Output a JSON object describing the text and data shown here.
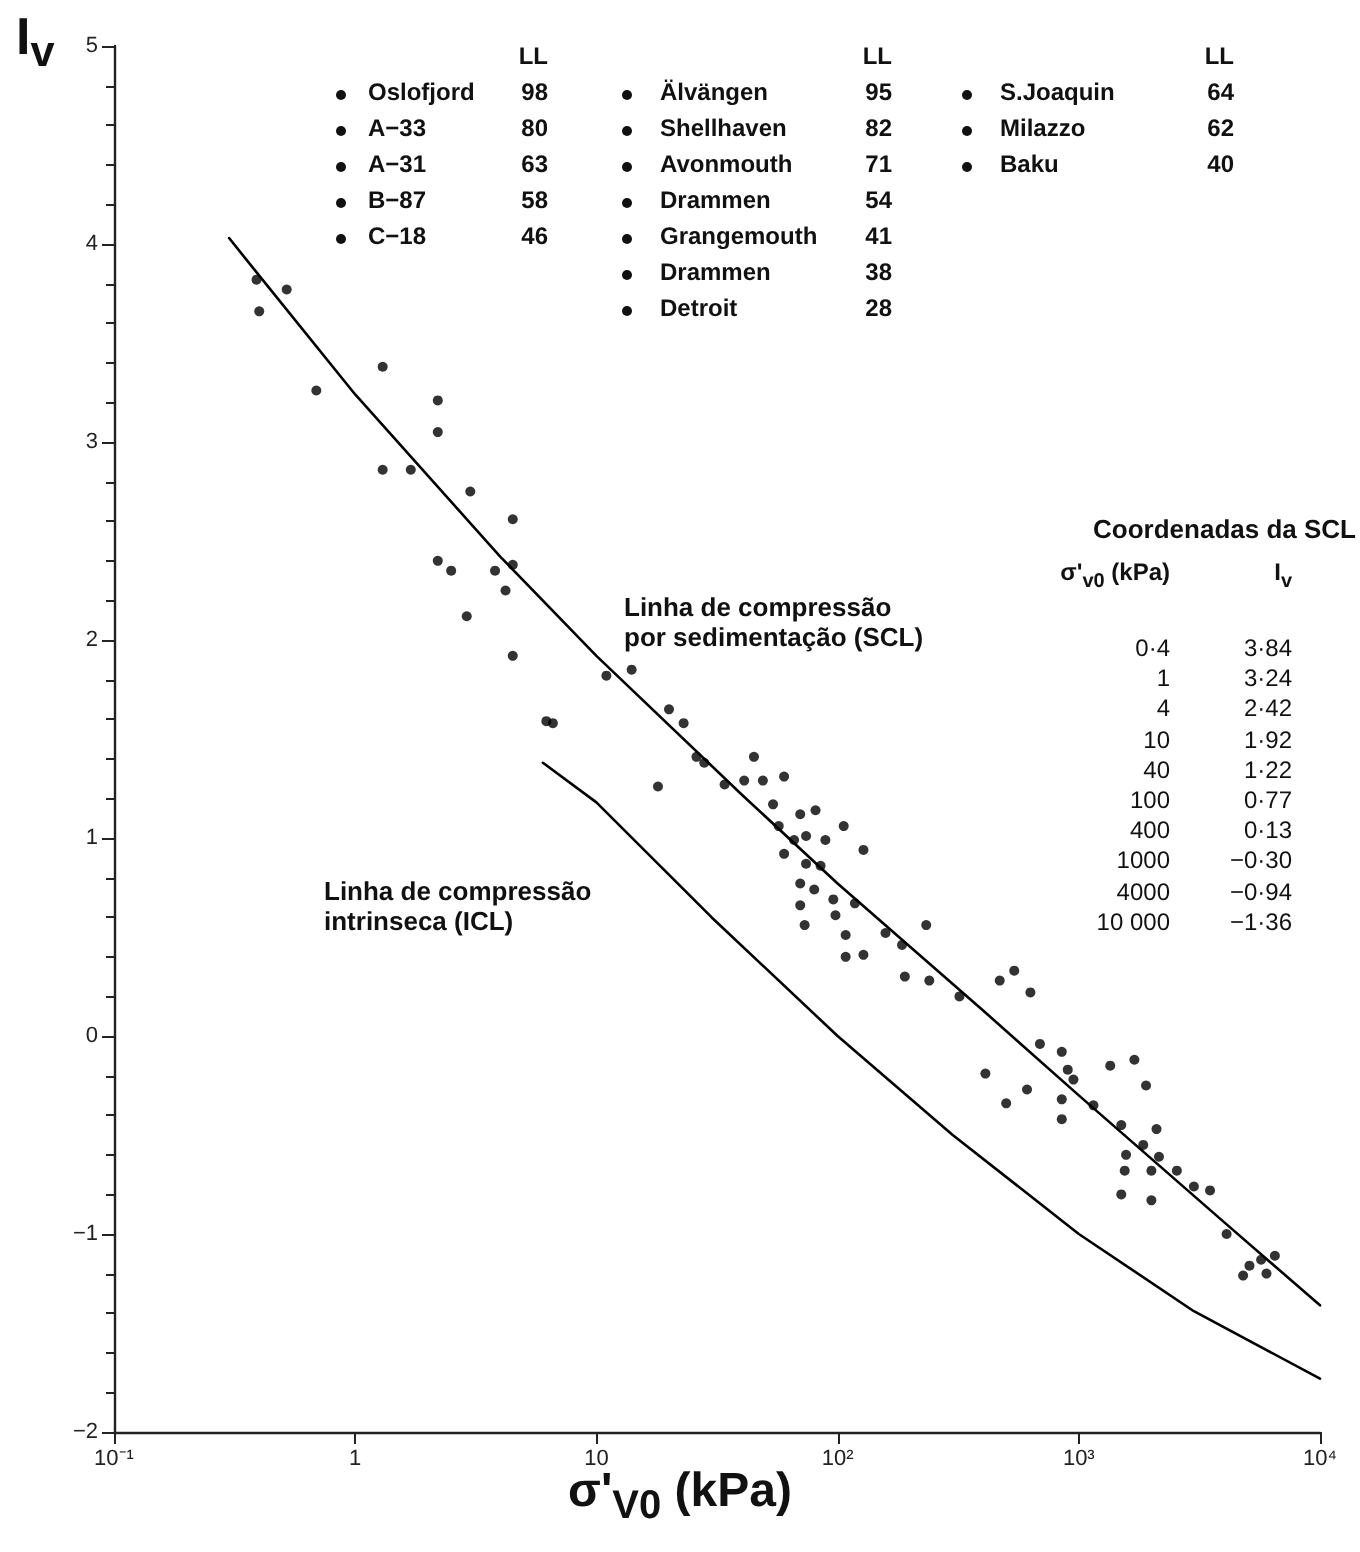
{
  "chart_data": {
    "type": "scatter",
    "xlabel": "σ'$_{V0}$ (kPa)",
    "ylabel": "I$_{v}$",
    "log": "x",
    "marker": "circle",
    "xlim": [
      0.1,
      10000
    ],
    "xticks": [
      {
        "value": 0.1,
        "label": "10⁻¹"
      },
      1,
      10,
      {
        "value": 100,
        "label": "10²"
      },
      {
        "value": 1000,
        "label": "10³"
      },
      {
        "value": 10000,
        "label": "10⁴"
      }
    ],
    "ylim": [
      -2,
      5
    ],
    "yticks": [
      {
        "value": -2,
        "label": "−2"
      },
      {
        "value": -1,
        "label": "−1"
      },
      0,
      1,
      2,
      3,
      4,
      5
    ],
    "series": [
      {
        "color": "#000000",
        "x": [
          0.39,
          0.4,
          0.52,
          0.69,
          1.3,
          1.3,
          1.7,
          2.2,
          2.2,
          3.0,
          2.2,
          2.5,
          2.9,
          4.5,
          4.5,
          3.8,
          4.2,
          4.5,
          6.2,
          6.6,
          11,
          14,
          20,
          18,
          23,
          26,
          28,
          45,
          34,
          41,
          49,
          60,
          54,
          70,
          81,
          57,
          66,
          74,
          89,
          106,
          128,
          60,
          74,
          85,
          70,
          80,
          96,
          118,
          70,
          73,
          98,
          108,
          158,
          185,
          233,
          108,
          128,
          190,
          240,
          320,
          470,
          540,
          630,
          690,
          410,
          500,
          610,
          850,
          950,
          850,
          1150,
          1350,
          1700,
          1900,
          1500,
          2100,
          1850,
          1570,
          2150,
          2000,
          1550,
          1500,
          2000,
          2550,
          3000,
          3500,
          4100,
          4800,
          5700,
          6500,
          6000,
          5100,
          850,
          900
        ],
        "values": [
          3.82,
          3.66,
          3.77,
          3.26,
          3.38,
          2.86,
          2.86,
          3.21,
          3.05,
          2.75,
          2.4,
          2.35,
          2.12,
          2.61,
          2.38,
          2.35,
          2.25,
          1.92,
          1.59,
          1.58,
          1.82,
          1.85,
          1.65,
          1.26,
          1.58,
          1.41,
          1.38,
          1.41,
          1.27,
          1.29,
          1.29,
          1.31,
          1.17,
          1.12,
          1.14,
          1.06,
          0.99,
          1.01,
          0.99,
          1.06,
          0.94,
          0.92,
          0.87,
          0.86,
          0.77,
          0.74,
          0.69,
          0.67,
          0.66,
          0.56,
          0.61,
          0.51,
          0.52,
          0.46,
          0.56,
          0.4,
          0.41,
          0.3,
          0.28,
          0.2,
          0.28,
          0.33,
          0.22,
          -0.04,
          -0.19,
          -0.34,
          -0.27,
          -0.32,
          -0.22,
          -0.42,
          -0.35,
          -0.15,
          -0.12,
          -0.25,
          -0.45,
          -0.47,
          -0.55,
          -0.6,
          -0.61,
          -0.68,
          -0.68,
          -0.8,
          -0.83,
          -0.68,
          -0.76,
          -0.78,
          -1.0,
          -1.21,
          -1.13,
          -1.11,
          -1.2,
          -1.16,
          -0.08,
          -0.17
        ]
      },
      {
        "type": "line",
        "marker": "none",
        "line_style": "solid",
        "color": "#000000",
        "x": [
          0.3,
          0.4,
          1,
          4,
          10,
          40,
          100,
          400,
          1000,
          4000,
          10000
        ],
        "values": [
          4.03,
          3.84,
          3.24,
          2.42,
          1.92,
          1.22,
          0.77,
          0.13,
          -0.3,
          -0.94,
          -1.36
        ]
      },
      {
        "type": "line",
        "marker": "none",
        "line_style": "solid",
        "color": "#000000",
        "x": [
          6,
          10,
          30,
          100,
          300,
          1000,
          3000,
          10000
        ],
        "values": [
          1.38,
          1.18,
          0.6,
          0.0,
          -0.5,
          -1.0,
          -1.39,
          -1.73
        ]
      }
    ],
    "annotations": [
      "LL",
      "LL",
      "LL",
      "Oslofjord 98",
      "A−33 80",
      "A−31 63",
      "B−87 58",
      "C−18 46",
      "Älvängen 95",
      "Shellhaven 82",
      "Avonmouth 71",
      "Drammen 54",
      "Grangemouth 41",
      "Drammen 38",
      "Detroit 28",
      "S.Joaquin 64",
      "Milazzo 62",
      "Baku 40",
      "Coordenadas da SCL",
      "σ'$_{v0}$ (kPa)",
      "I$_{v}$",
      "0·4 3·84",
      "1 3·24",
      "4 2·42",
      "10 1·92",
      "40 1·22",
      "100 0·77",
      "400 0·13",
      "1000 −0·30",
      "4000 −0·94",
      "10 000 −1·36",
      "Linha de compressão\npor sedimentação (SCL)",
      "Linha de compressão\nintrinseca (ICL)"
    ]
  }
}
